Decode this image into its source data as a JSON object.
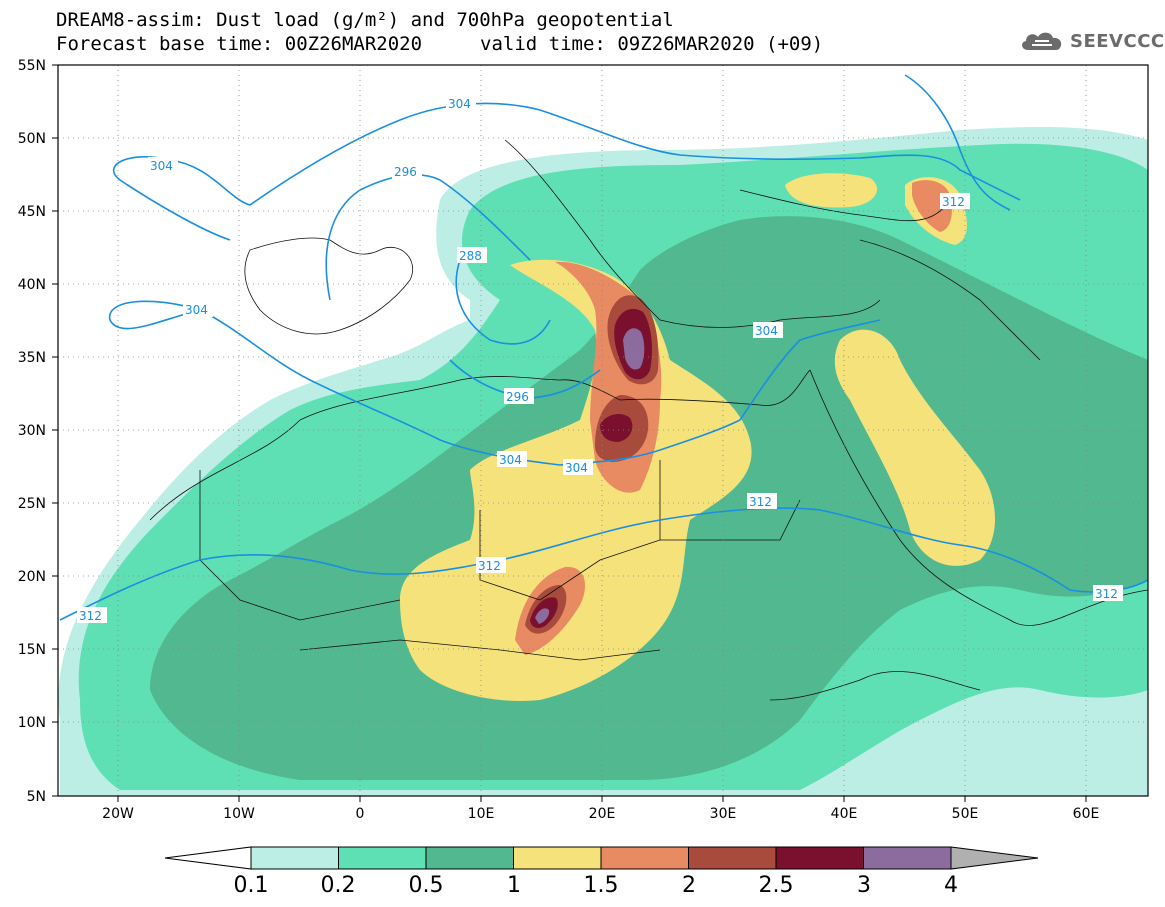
{
  "title": {
    "line1": "DREAM8-assim: Dust load (g/m²) and 700hPa geopotential",
    "base_time_label": "Forecast base time: 00Z26MAR2020",
    "valid_time_label": "valid time: 09Z26MAR2020 (+09)"
  },
  "logo": {
    "text": "SEEVCCC",
    "icon": "cloud-icon",
    "color": "#6b6b6b"
  },
  "map": {
    "lat_labels": [
      "55N",
      "50N",
      "45N",
      "40N",
      "35N",
      "30N",
      "25N",
      "20N",
      "15N",
      "10N",
      "5N"
    ],
    "lon_labels": [
      "20W",
      "10W",
      "0",
      "10E",
      "20E",
      "30E",
      "40E",
      "50E",
      "60E"
    ],
    "contour_labels": [
      "304",
      "304",
      "296",
      "288",
      "304",
      "296",
      "304",
      "304",
      "312",
      "312",
      "312",
      "312",
      "304",
      "312"
    ],
    "contour_color": "#1a8fe0"
  },
  "colorbar": {
    "labels": [
      "0.1",
      "0.2",
      "0.5",
      "1",
      "1.5",
      "2",
      "2.5",
      "3",
      "4"
    ],
    "colors": [
      "#ffffff",
      "#bdeee6",
      "#5fe0b4",
      "#52b890",
      "#f5e27a",
      "#e88a62",
      "#a84a3c",
      "#7a0f2e",
      "#8c6c9e",
      "#b0b0b0"
    ]
  }
}
